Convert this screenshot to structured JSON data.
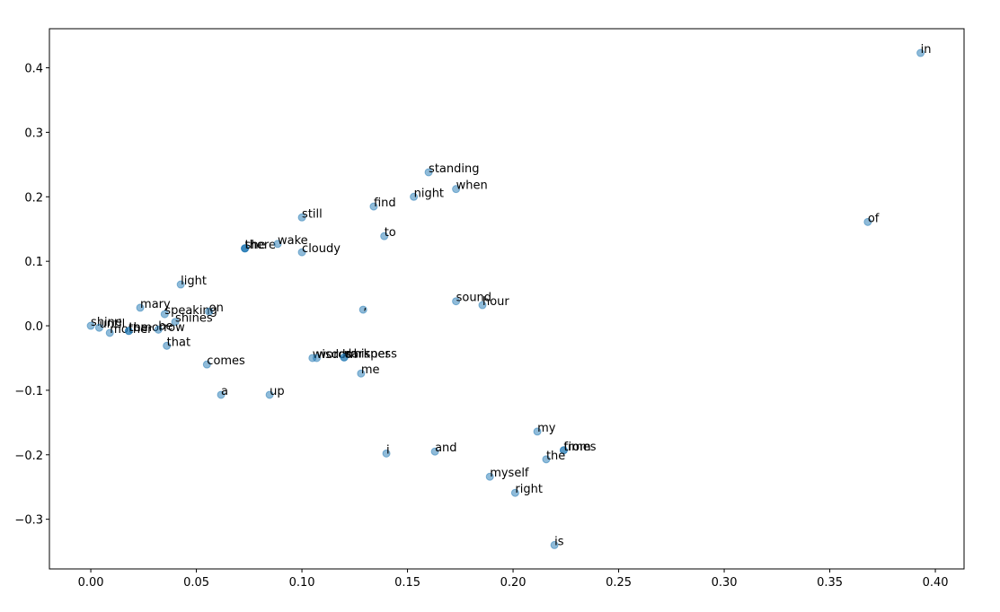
{
  "chart_data": {
    "type": "scatter",
    "color": "#1f77b4",
    "labels": [
      "in",
      "of",
      "standing",
      "when",
      "night",
      "find",
      "still",
      "to",
      "she",
      "the",
      "there",
      "wake",
      "cloudy",
      "light",
      "sound",
      "hour",
      ",",
      "mary",
      "speaking",
      "on",
      "shines",
      "shine",
      "until",
      "mother",
      "tomorrow",
      "the",
      "be",
      "that",
      "comes",
      "a",
      "up",
      "wisdom",
      "words",
      "darkness",
      "whisper",
      "me",
      "i",
      "and",
      "my",
      "from",
      "times",
      "the",
      "myself",
      "right",
      "is"
    ],
    "x": [
      0.393,
      0.368,
      0.16,
      0.173,
      0.153,
      0.134,
      0.1,
      0.139,
      0.073,
      0.073,
      0.073,
      0.0885,
      0.1,
      0.0426,
      0.173,
      0.1855,
      0.129,
      0.0234,
      0.035,
      0.056,
      0.04,
      0.0,
      0.004,
      0.009,
      0.018,
      0.018,
      0.032,
      0.036,
      0.055,
      0.0617,
      0.0847,
      0.105,
      0.107,
      0.12,
      0.12,
      0.128,
      0.14,
      0.163,
      0.2115,
      0.224,
      0.224,
      0.2157,
      0.189,
      0.201,
      0.2196
    ],
    "y": [
      0.423,
      0.161,
      0.238,
      0.212,
      0.2,
      0.185,
      0.168,
      0.139,
      0.12,
      0.12,
      0.12,
      0.127,
      0.114,
      0.064,
      0.038,
      0.032,
      0.025,
      0.028,
      0.018,
      0.022,
      0.006,
      0.0,
      -0.003,
      -0.011,
      -0.008,
      -0.008,
      -0.006,
      -0.031,
      -0.06,
      -0.107,
      -0.107,
      -0.05,
      -0.05,
      -0.049,
      -0.049,
      -0.074,
      -0.198,
      -0.195,
      -0.164,
      -0.193,
      -0.193,
      -0.207,
      -0.234,
      -0.259,
      -0.34
    ],
    "xlim": [
      -0.0196,
      0.4136
    ],
    "ylim": [
      -0.377,
      0.4606
    ],
    "xticks": [
      {
        "value": 0,
        "label": "0.00"
      },
      {
        "value": 0.05,
        "label": "0.05"
      },
      {
        "value": 0.1,
        "label": "0.10"
      },
      {
        "value": 0.15,
        "label": "0.15"
      },
      {
        "value": 0.2,
        "label": "0.20"
      },
      {
        "value": 0.25,
        "label": "0.25"
      },
      {
        "value": 0.3,
        "label": "0.30"
      },
      {
        "value": 0.35,
        "label": "0.35"
      },
      {
        "value": 0.4,
        "label": "0.40"
      }
    ],
    "yticks": [
      {
        "value": -0.3,
        "label": "−0.3"
      },
      {
        "value": -0.2,
        "label": "−0.2"
      },
      {
        "value": -0.1,
        "label": "−0.1"
      },
      {
        "value": 0,
        "label": "0.0"
      },
      {
        "value": 0.1,
        "label": "0.1"
      },
      {
        "value": 0.2,
        "label": "0.2"
      },
      {
        "value": 0.3,
        "label": "0.3"
      },
      {
        "value": 0.4,
        "label": "0.4"
      }
    ]
  }
}
